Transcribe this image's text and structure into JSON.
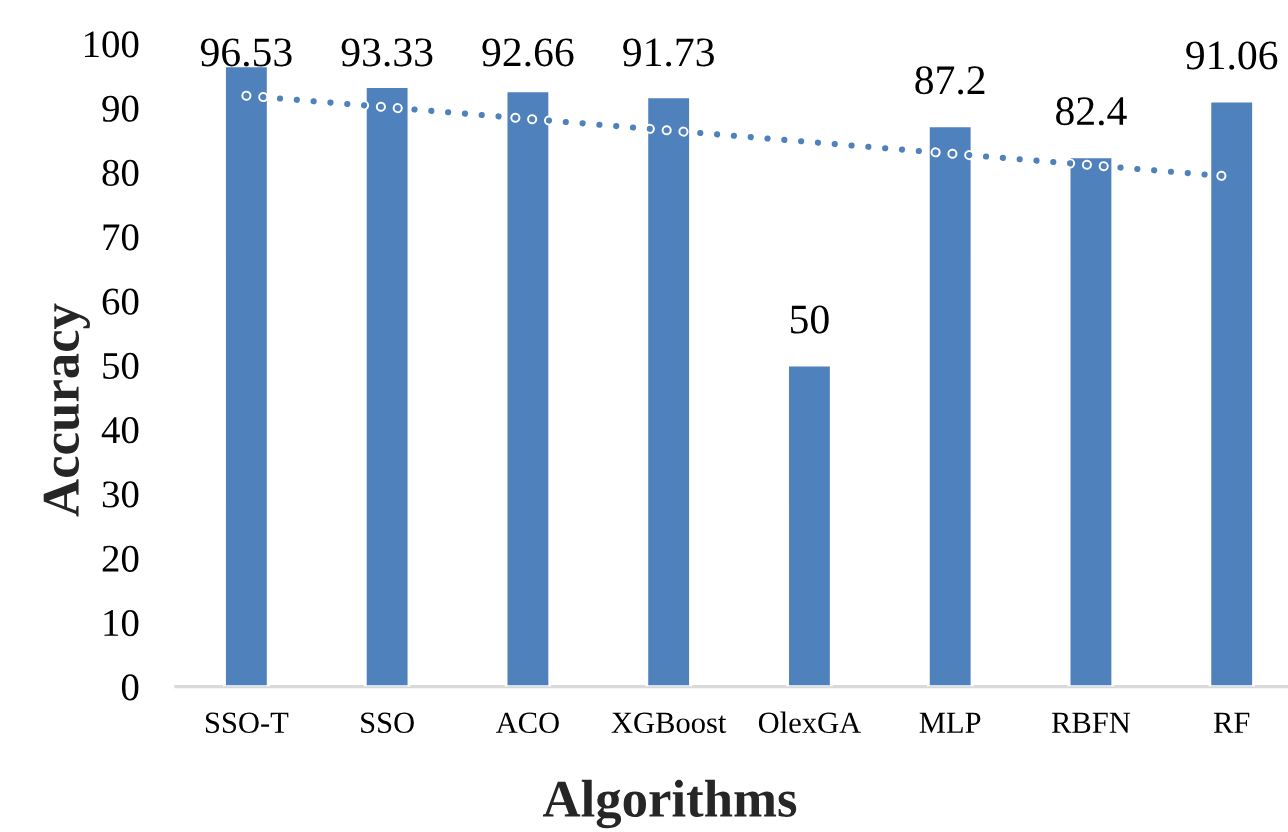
{
  "chart_data": {
    "type": "bar",
    "xlabel": "Algorithms",
    "ylabel": "Accuracy",
    "categories": [
      "SSO-T",
      "SSO",
      "ACO",
      "XGBoost",
      "OlexGA",
      "MLP",
      "RBFN",
      "RF"
    ],
    "series": [
      {
        "color": "#4f81bd",
        "values": [
          96.53,
          93.33,
          92.66,
          91.73,
          50,
          87.2,
          82.4,
          91.06
        ],
        "value_labels": [
          "96.53",
          "93.33",
          "92.66",
          "91.73",
          "50",
          "87.2",
          "82.4",
          "91.06"
        ]
      },
      {
        "type": "line",
        "color": "#4f81bd",
        "line_style": "dotted",
        "values": [
          91.9,
          90.1,
          88.3,
          86.5,
          84.7,
          82.9,
          81.1,
          79.3
        ]
      }
    ],
    "ylim": [
      0,
      100
    ],
    "yticks": [
      0,
      10,
      20,
      30,
      40,
      50,
      60,
      70,
      80,
      90,
      100
    ]
  }
}
